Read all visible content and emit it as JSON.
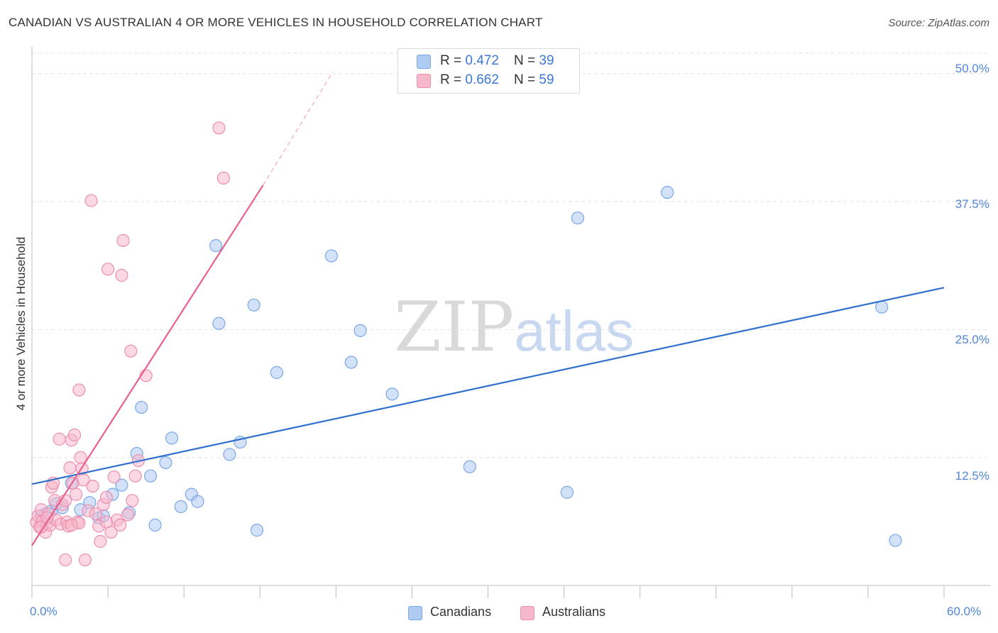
{
  "header": {
    "title": "CANADIAN VS AUSTRALIAN 4 OR MORE VEHICLES IN HOUSEHOLD CORRELATION CHART",
    "source": "Source: ZipAtlas.com"
  },
  "watermark": {
    "zip": "ZIP",
    "atlas": "atlas"
  },
  "legend": {
    "rows": [
      {
        "r_label": "R = ",
        "r_value": "0.472",
        "n_label": "N = ",
        "n_value": "39",
        "color": "#aecbf2"
      },
      {
        "r_label": "R = ",
        "r_value": "0.662",
        "n_label": "N = ",
        "n_value": "59",
        "color": "#f7b8cc"
      }
    ]
  },
  "bottom_legend": {
    "items": [
      {
        "label": "Canadians",
        "color": "#aecbf2"
      },
      {
        "label": "Australians",
        "color": "#f7b8cc"
      }
    ]
  },
  "chart_data": {
    "type": "scatter",
    "title": "CANADIAN VS AUSTRALIAN 4 OR MORE VEHICLES IN HOUSEHOLD CORRELATION CHART",
    "xlabel": "",
    "ylabel": "4 or more Vehicles in Household",
    "xlim": [
      0,
      60
    ],
    "ylim": [
      0,
      52
    ],
    "x_tick_labels": [
      "0.0%",
      "60.0%"
    ],
    "y_ticks": [
      12.5,
      25.0,
      37.5,
      50.0
    ],
    "y_tick_labels": [
      "12.5%",
      "25.0%",
      "37.5%",
      "50.0%"
    ],
    "grid": true,
    "series": [
      {
        "name": "Canadians",
        "color": "#7aa8e8",
        "fill": "#aecbf2",
        "line_color": "#2f6fce",
        "trend": {
          "x": [
            0,
            60
          ],
          "y": [
            9.9,
            29.1
          ]
        },
        "points": [
          [
            0.6,
            6.8
          ],
          [
            0.9,
            7.0
          ],
          [
            1.3,
            7.3
          ],
          [
            1.6,
            8.0
          ],
          [
            2.0,
            7.6
          ],
          [
            2.6,
            10.0
          ],
          [
            3.2,
            7.4
          ],
          [
            3.8,
            8.1
          ],
          [
            4.4,
            6.6
          ],
          [
            4.7,
            6.8
          ],
          [
            5.3,
            8.9
          ],
          [
            5.9,
            9.8
          ],
          [
            6.4,
            7.1
          ],
          [
            6.9,
            12.9
          ],
          [
            7.2,
            17.4
          ],
          [
            7.8,
            10.7
          ],
          [
            8.1,
            5.9
          ],
          [
            8.8,
            12.0
          ],
          [
            9.2,
            14.4
          ],
          [
            9.8,
            7.7
          ],
          [
            10.5,
            8.9
          ],
          [
            10.9,
            8.2
          ],
          [
            12.1,
            33.2
          ],
          [
            12.3,
            25.6
          ],
          [
            13.0,
            12.8
          ],
          [
            13.7,
            14.0
          ],
          [
            14.6,
            27.4
          ],
          [
            14.8,
            5.4
          ],
          [
            16.1,
            20.8
          ],
          [
            19.7,
            32.2
          ],
          [
            21.0,
            21.8
          ],
          [
            21.6,
            24.9
          ],
          [
            23.7,
            18.7
          ],
          [
            28.8,
            11.6
          ],
          [
            35.2,
            9.1
          ],
          [
            35.9,
            35.9
          ],
          [
            41.8,
            38.4
          ],
          [
            55.9,
            27.2
          ],
          [
            56.8,
            4.4
          ]
        ]
      },
      {
        "name": "Australians",
        "color": "#ee8fae",
        "fill": "#f7b8cc",
        "line_color": "#e8608c",
        "trend": {
          "x": [
            0,
            15.2
          ],
          "y": [
            3.9,
            39.1
          ]
        },
        "trend_dashed": {
          "x": [
            15.2,
            19.8
          ],
          "y": [
            39.1,
            50.2
          ]
        },
        "points": [
          [
            0.3,
            6.2
          ],
          [
            0.4,
            6.8
          ],
          [
            0.5,
            5.7
          ],
          [
            0.6,
            7.4
          ],
          [
            0.7,
            6.3
          ],
          [
            0.9,
            5.2
          ],
          [
            1.0,
            6.1
          ],
          [
            1.1,
            7.0
          ],
          [
            1.2,
            5.9
          ],
          [
            1.3,
            9.6
          ],
          [
            1.4,
            10.0
          ],
          [
            1.5,
            8.3
          ],
          [
            1.6,
            6.4
          ],
          [
            1.8,
            14.3
          ],
          [
            1.9,
            6.0
          ],
          [
            2.0,
            7.9
          ],
          [
            2.2,
            8.3
          ],
          [
            2.3,
            6.2
          ],
          [
            2.4,
            5.8
          ],
          [
            2.5,
            11.5
          ],
          [
            2.6,
            14.2
          ],
          [
            2.7,
            10.0
          ],
          [
            2.8,
            14.7
          ],
          [
            2.9,
            8.9
          ],
          [
            3.0,
            6.2
          ],
          [
            3.1,
            19.1
          ],
          [
            3.2,
            12.5
          ],
          [
            3.3,
            11.4
          ],
          [
            3.4,
            10.3
          ],
          [
            3.5,
            2.5
          ],
          [
            3.7,
            7.3
          ],
          [
            3.9,
            37.6
          ],
          [
            4.0,
            9.7
          ],
          [
            4.2,
            7.0
          ],
          [
            4.4,
            5.8
          ],
          [
            4.5,
            4.3
          ],
          [
            4.7,
            7.9
          ],
          [
            4.9,
            8.6
          ],
          [
            5.0,
            30.9
          ],
          [
            5.2,
            5.2
          ],
          [
            5.4,
            10.6
          ],
          [
            5.6,
            6.4
          ],
          [
            5.8,
            5.9
          ],
          [
            5.9,
            30.3
          ],
          [
            6.0,
            33.7
          ],
          [
            6.3,
            6.9
          ],
          [
            6.5,
            22.9
          ],
          [
            6.6,
            8.3
          ],
          [
            6.8,
            10.7
          ],
          [
            7.0,
            12.2
          ],
          [
            7.5,
            20.5
          ],
          [
            2.2,
            2.5
          ],
          [
            0.6,
            5.7
          ],
          [
            1.0,
            6.6
          ],
          [
            4.9,
            6.2
          ],
          [
            12.3,
            44.7
          ],
          [
            12.6,
            39.8
          ],
          [
            3.1,
            6.1
          ],
          [
            2.6,
            5.9
          ]
        ]
      }
    ]
  }
}
